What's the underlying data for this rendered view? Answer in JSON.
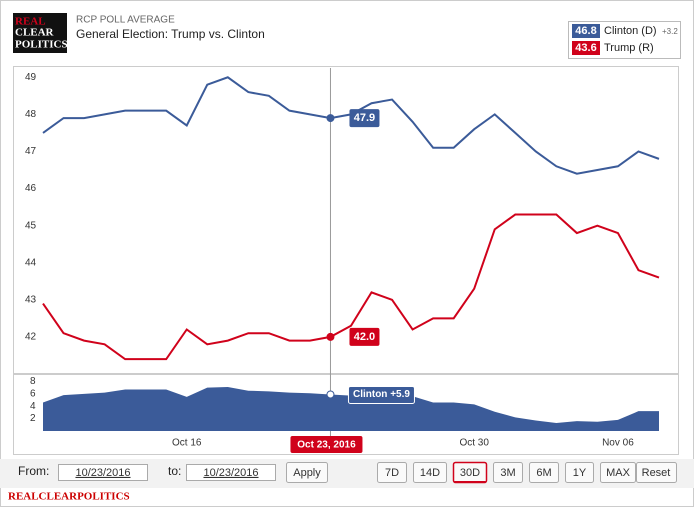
{
  "header": {
    "logo": [
      "REAL",
      "CLEAR",
      "POLITICS"
    ],
    "kicker": "RCP POLL AVERAGE",
    "title": "General Election: Trump vs. Clinton"
  },
  "legend": [
    {
      "value": "46.8",
      "name": "Clinton (D)",
      "spread": "+3.2",
      "color": "#3b5b99"
    },
    {
      "value": "43.6",
      "name": "Trump (R)",
      "color": "#d0021b"
    }
  ],
  "tooltip": {
    "date": "Oct 23, 2016",
    "labels": [
      "47.9",
      "42.0",
      "Clinton +5.9"
    ],
    "x": "2016-10-23"
  },
  "chart_data": [
    {
      "type": "line",
      "x": [
        "2016-10-09",
        "2016-10-10",
        "2016-10-11",
        "2016-10-12",
        "2016-10-13",
        "2016-10-14",
        "2016-10-15",
        "2016-10-16",
        "2016-10-17",
        "2016-10-18",
        "2016-10-19",
        "2016-10-20",
        "2016-10-21",
        "2016-10-22",
        "2016-10-23",
        "2016-10-24",
        "2016-10-25",
        "2016-10-26",
        "2016-10-27",
        "2016-10-28",
        "2016-10-29",
        "2016-10-30",
        "2016-10-31",
        "2016-11-01",
        "2016-11-02",
        "2016-11-03",
        "2016-11-04",
        "2016-11-05",
        "2016-11-06",
        "2016-11-07",
        "2016-11-08"
      ],
      "xlim": [
        "2016-10-09",
        "2016-11-08"
      ],
      "xticks": [
        {
          "value": "2016-10-16",
          "label": "Oct 16"
        },
        {
          "value": "2016-10-30",
          "label": "Oct 30"
        },
        {
          "value": "2016-11-06",
          "label": "Nov 06"
        }
      ],
      "series": [
        {
          "name": "Clinton (D)",
          "color": "#3b5b99",
          "values": [
            47.5,
            47.9,
            47.9,
            48.0,
            48.1,
            48.1,
            48.1,
            47.7,
            48.8,
            49.0,
            48.6,
            48.5,
            48.1,
            48.0,
            47.9,
            48.0,
            48.3,
            48.4,
            47.8,
            47.1,
            47.1,
            47.6,
            48.0,
            47.5,
            47.0,
            46.6,
            46.4,
            46.5,
            46.6,
            47.0,
            46.8
          ]
        },
        {
          "name": "Trump (R)",
          "color": "#d0021b",
          "values": [
            42.9,
            42.1,
            41.9,
            41.8,
            41.4,
            41.4,
            41.4,
            42.2,
            41.8,
            41.9,
            42.1,
            42.1,
            41.9,
            41.9,
            42.0,
            42.3,
            43.2,
            43.0,
            42.2,
            42.5,
            42.5,
            43.3,
            44.9,
            45.3,
            45.3,
            45.3,
            44.8,
            45.0,
            44.8,
            43.8,
            43.6
          ]
        }
      ],
      "ylim": [
        41,
        49.25
      ],
      "yticks": [
        42,
        43,
        44,
        45,
        46,
        47,
        48,
        49
      ],
      "grid": false
    },
    {
      "type": "area",
      "x": [
        "2016-10-09",
        "2016-10-10",
        "2016-10-11",
        "2016-10-12",
        "2016-10-13",
        "2016-10-14",
        "2016-10-15",
        "2016-10-16",
        "2016-10-17",
        "2016-10-18",
        "2016-10-19",
        "2016-10-20",
        "2016-10-21",
        "2016-10-22",
        "2016-10-23",
        "2016-10-24",
        "2016-10-25",
        "2016-10-26",
        "2016-10-27",
        "2016-10-28",
        "2016-10-29",
        "2016-10-30",
        "2016-10-31",
        "2016-11-01",
        "2016-11-02",
        "2016-11-03",
        "2016-11-04",
        "2016-11-05",
        "2016-11-06",
        "2016-11-07",
        "2016-11-08"
      ],
      "xlim": [
        "2016-10-09",
        "2016-11-08"
      ],
      "color": "#3b5b99",
      "values": [
        4.6,
        5.8,
        6.0,
        6.2,
        6.7,
        6.7,
        6.7,
        5.5,
        7.0,
        7.1,
        6.5,
        6.4,
        6.2,
        6.1,
        5.9,
        5.7,
        5.1,
        5.4,
        5.6,
        4.6,
        4.6,
        4.3,
        3.1,
        2.2,
        1.7,
        1.3,
        1.6,
        1.5,
        1.8,
        3.2,
        3.2
      ],
      "ylim": [
        0,
        9.2
      ],
      "yticks": [
        2,
        4,
        6,
        8
      ]
    }
  ],
  "controls": {
    "from_label": "From:",
    "from": "10/23/2016",
    "to_label": "to:",
    "to": "10/23/2016",
    "apply": "Apply",
    "ranges": [
      "7D",
      "14D",
      "30D",
      "3M",
      "6M",
      "1Y",
      "MAX"
    ],
    "active": "30D",
    "reset": "Reset"
  },
  "footer": "REALCLEARPOLITICS"
}
